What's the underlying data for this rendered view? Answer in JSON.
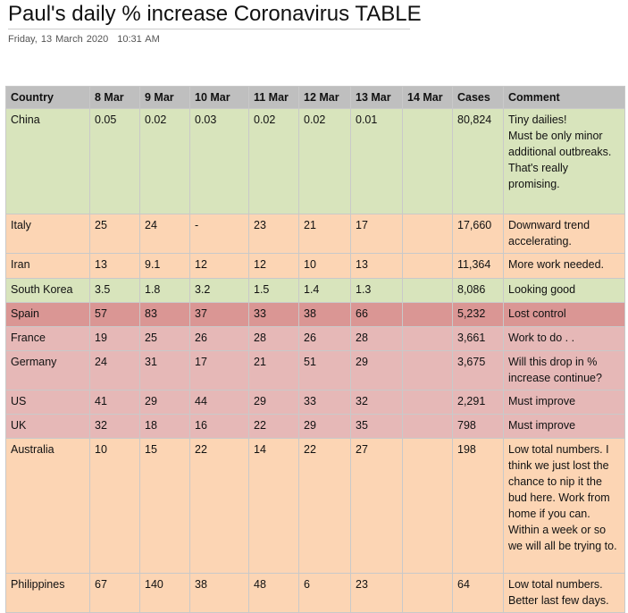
{
  "title": "Paul's daily % increase Coronavirus TABLE",
  "date": "Friday, 13 March 2020",
  "time": "10:31 AM",
  "columns": [
    "Country",
    "8 Mar",
    "9 Mar",
    "10 Mar",
    "11 Mar",
    "12 Mar",
    "13 Mar",
    "14 Mar",
    "Cases",
    "Comment"
  ],
  "row_colors": {
    "green": "#d8e4bc",
    "peach": "#fcd5b4",
    "red": "#da9694",
    "pink": "#e6b8b7",
    "header": "#bfbfbf"
  },
  "rows": [
    {
      "color": "green",
      "cells": [
        "China",
        "0.05",
        "0.02",
        "0.03",
        "0.02",
        "0.02",
        "0.01",
        "",
        "80,824",
        "Tiny dailies!\nMust be only minor additional outbreaks.\nThat's really promising."
      ]
    },
    {
      "color": "peach",
      "cells": [
        "Italy",
        "25",
        "24",
        "-",
        "23",
        "21",
        "17",
        "",
        "17,660",
        "Downward trend accelerating."
      ]
    },
    {
      "color": "peach",
      "cells": [
        "Iran",
        "13",
        "9.1",
        "12",
        "12",
        "10",
        "13",
        "",
        "11,364",
        "More work needed."
      ]
    },
    {
      "color": "green",
      "cells": [
        "South Korea",
        "3.5",
        "1.8",
        "3.2",
        "1.5",
        "1.4",
        "1.3",
        "",
        "8,086",
        "Looking good"
      ]
    },
    {
      "color": "red",
      "cells": [
        "Spain",
        "57",
        "83",
        "37",
        "33",
        "38",
        "66",
        "",
        "5,232",
        "Lost control"
      ]
    },
    {
      "color": "pink",
      "cells": [
        "France",
        "19",
        "25",
        "26",
        "28",
        "26",
        "28",
        "",
        "3,661",
        "Work to do . ."
      ]
    },
    {
      "color": "pink",
      "cells": [
        "Germany",
        "24",
        "31",
        "17",
        "21",
        "51",
        "29",
        "",
        "3,675",
        "Will this drop in % increase continue?"
      ]
    },
    {
      "color": "pink",
      "cells": [
        "US",
        "41",
        "29",
        "44",
        "29",
        "33",
        "32",
        "",
        "2,291",
        "Must improve"
      ]
    },
    {
      "color": "pink",
      "cells": [
        "UK",
        "32",
        "18",
        "16",
        "22",
        "29",
        "35",
        "",
        "798",
        "Must improve"
      ]
    },
    {
      "color": "peach",
      "cells": [
        "Australia",
        "10",
        "15",
        "22",
        "14",
        "22",
        "27",
        "",
        "198",
        "Low total numbers. I think we just lost the chance to nip it the bud here. Work from home if you can. Within a week or so we will all be trying to."
      ]
    },
    {
      "color": "peach",
      "cells": [
        "Philippines",
        "67",
        "140",
        "38",
        "48",
        "6",
        "23",
        "",
        "64",
        "Low total numbers. Better last few days."
      ]
    }
  ]
}
